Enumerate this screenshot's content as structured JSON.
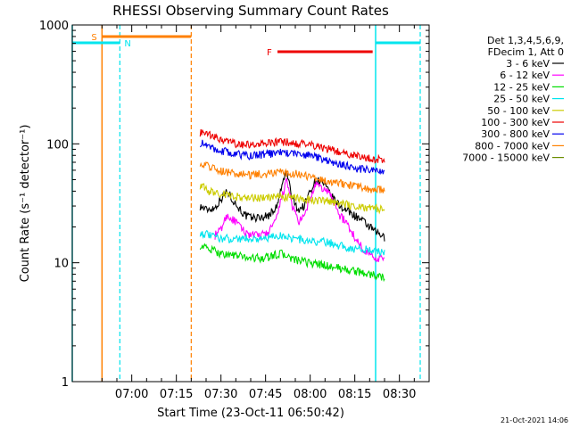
{
  "chart_data": {
    "type": "line",
    "title": "RHESSI Observing Summary Count Rates",
    "xlabel": "Start Time (23-Oct-11 06:50:42)",
    "ylabel": "Count Rate (s⁻¹ detector⁻¹)",
    "y_scale": "log",
    "ylim": [
      1,
      1000
    ],
    "y_ticks": [
      1,
      10,
      100,
      1000
    ],
    "y_tick_labels": [
      "1",
      "10",
      "100",
      "1000"
    ],
    "xlim_minutes": [
      -20,
      100
    ],
    "x_ticks_minutes": [
      0,
      15,
      30,
      45,
      60,
      75,
      90
    ],
    "x_tick_labels": [
      "07:00",
      "07:15",
      "07:30",
      "07:45",
      "08:00",
      "08:15",
      "08:30"
    ],
    "grid": false,
    "legend_position": "right",
    "legend_header": [
      "Det 1,3,4,5,6,9,",
      "FDecim 1, Att 0"
    ],
    "timestamp": "21-Oct-2021 14:06",
    "colors": {
      "black": "#000000",
      "magenta": "#ff00ff",
      "green": "#00dd00",
      "cyan": "#00e5ee",
      "yellow": "#cccc00",
      "red": "#ee0000",
      "blue": "#0000ee",
      "orange": "#ff8000",
      "olive": "#6b8e00"
    },
    "annotations": {
      "cyan_bar_label": "N",
      "orange_bar_label": "S",
      "red_bar_label": "F",
      "cyan_bars": [
        [
          -20,
          -4
        ],
        [
          82,
          97
        ]
      ],
      "cyan_solid_lines": [
        -20,
        82
      ],
      "cyan_dashed_lines": [
        -4,
        97
      ],
      "orange_bar": [
        -10,
        20
      ],
      "orange_solid_line": -10,
      "orange_dashed_line": 20,
      "red_bar": [
        49,
        81
      ]
    },
    "series": [
      {
        "name": "3 - 6 keV",
        "color": "#000000",
        "x": [
          23,
          25,
          28,
          32,
          35,
          38,
          40,
          43,
          46,
          49,
          52,
          54,
          56,
          58,
          60,
          62,
          64,
          66,
          68,
          70,
          72,
          74,
          76,
          78,
          80,
          82,
          84,
          85
        ],
        "y": [
          30,
          28,
          29,
          40,
          31,
          25,
          24,
          24,
          25,
          30,
          58,
          34,
          28,
          30,
          40,
          50,
          48,
          40,
          34,
          30,
          28,
          26,
          24,
          22,
          20,
          18,
          17,
          16
        ]
      },
      {
        "name": "6 - 12 keV",
        "color": "#ff00ff",
        "x": [
          28,
          30,
          32,
          35,
          38,
          41,
          43,
          46,
          49,
          52,
          54,
          56,
          58,
          60,
          62,
          64,
          66,
          68,
          70,
          72,
          74,
          76,
          78,
          80,
          82,
          84,
          85
        ],
        "y": [
          17,
          19,
          25,
          22,
          18,
          17,
          17,
          18,
          24,
          48,
          30,
          22,
          24,
          35,
          45,
          42,
          40,
          32,
          25,
          22,
          18,
          15,
          13,
          12,
          11,
          11,
          11
        ]
      },
      {
        "name": "12 - 25 keV",
        "color": "#00dd00",
        "x": [
          23,
          26,
          30,
          35,
          40,
          45,
          50,
          55,
          60,
          65,
          70,
          75,
          80,
          85
        ],
        "y": [
          14,
          13,
          12,
          11.5,
          11,
          11,
          12,
          10.5,
          10,
          9.5,
          9,
          8.5,
          8,
          7.5
        ]
      },
      {
        "name": "25 - 50 keV",
        "color": "#00e5ee",
        "x": [
          23,
          26,
          30,
          35,
          40,
          45,
          50,
          55,
          60,
          65,
          70,
          75,
          80,
          85
        ],
        "y": [
          18,
          17,
          16,
          16,
          16,
          16,
          17,
          16,
          15,
          15,
          14,
          13,
          13,
          12
        ]
      },
      {
        "name": "50 - 100 keV",
        "color": "#cccc00",
        "x": [
          23,
          26,
          30,
          35,
          40,
          45,
          50,
          55,
          60,
          65,
          70,
          75,
          80,
          85
        ],
        "y": [
          45,
          40,
          38,
          36,
          35,
          35,
          36,
          35,
          34,
          33,
          32,
          30,
          29,
          28
        ]
      },
      {
        "name": "100 - 300 keV",
        "color": "#ee0000",
        "x": [
          23,
          26,
          30,
          35,
          40,
          45,
          50,
          55,
          60,
          65,
          70,
          75,
          80,
          85
        ],
        "y": [
          125,
          118,
          108,
          100,
          98,
          100,
          104,
          102,
          98,
          92,
          86,
          80,
          76,
          74
        ]
      },
      {
        "name": "300 - 800 keV",
        "color": "#0000ee",
        "x": [
          23,
          26,
          30,
          35,
          40,
          45,
          50,
          55,
          60,
          65,
          70,
          75,
          80,
          85
        ],
        "y": [
          102,
          95,
          88,
          82,
          80,
          82,
          85,
          83,
          80,
          74,
          68,
          63,
          60,
          58
        ]
      },
      {
        "name": "800 - 7000 keV",
        "color": "#ff8000",
        "x": [
          23,
          26,
          30,
          35,
          40,
          45,
          50,
          55,
          60,
          65,
          70,
          75,
          80,
          85
        ],
        "y": [
          70,
          65,
          60,
          56,
          55,
          56,
          58,
          56,
          53,
          50,
          47,
          44,
          42,
          41
        ]
      },
      {
        "name": "7000 - 15000 keV",
        "color": "#6b8e00",
        "x": [],
        "y": []
      }
    ]
  }
}
